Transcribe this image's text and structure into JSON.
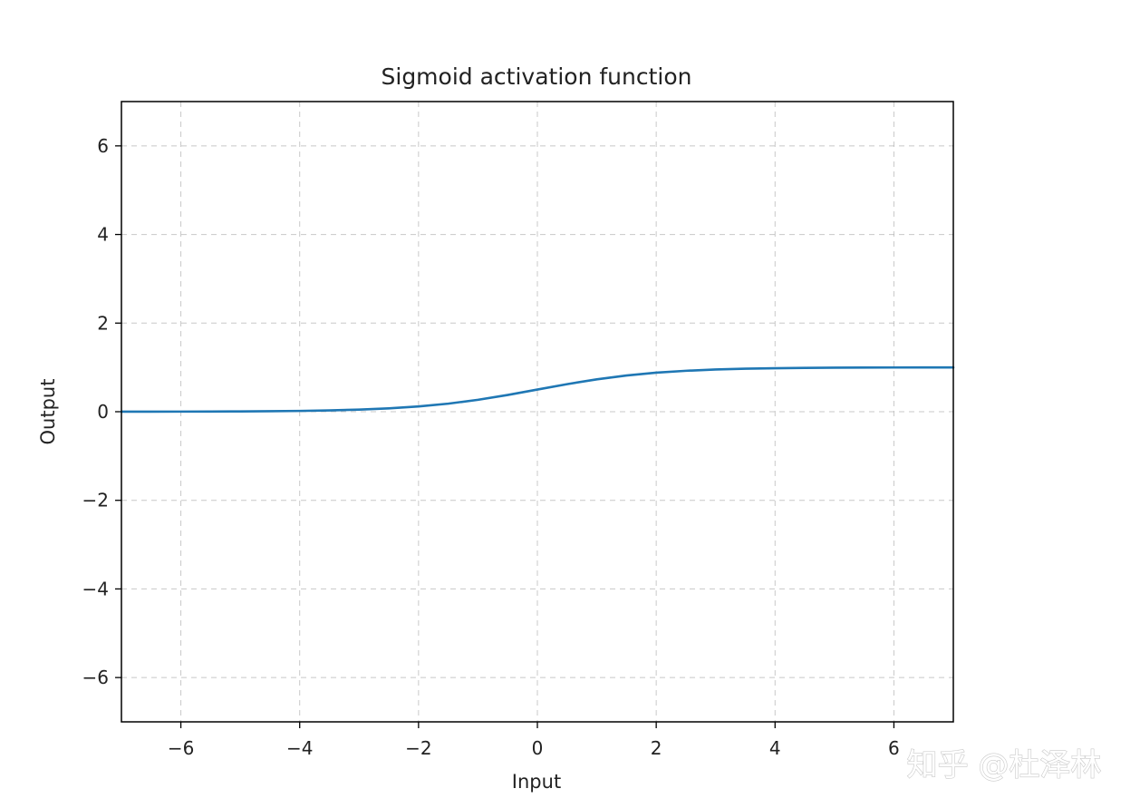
{
  "chart_data": {
    "type": "line",
    "title": "Sigmoid activation function",
    "xlabel": "Input",
    "ylabel": "Output",
    "xlim": [
      -7,
      7
    ],
    "ylim": [
      -7,
      7
    ],
    "xticks": [
      -6,
      -4,
      -2,
      0,
      2,
      4,
      6
    ],
    "yticks": [
      -6,
      -4,
      -2,
      0,
      2,
      4,
      6
    ],
    "xtick_labels": [
      "−6",
      "−4",
      "−2",
      "0",
      "2",
      "4",
      "6"
    ],
    "ytick_labels": [
      "−6",
      "−4",
      "−2",
      "0",
      "2",
      "4",
      "6"
    ],
    "grid": true,
    "legend": "none",
    "series": [
      {
        "color": "#1f77b4",
        "x": [
          -7,
          -6.5,
          -6,
          -5.5,
          -5,
          -4.5,
          -4,
          -3.5,
          -3,
          -2.5,
          -2,
          -1.5,
          -1,
          -0.5,
          0,
          0.5,
          1,
          1.5,
          2,
          2.5,
          3,
          3.5,
          4,
          4.5,
          5,
          5.5,
          6,
          6.5,
          7
        ],
        "y": [
          0.001,
          0.0015,
          0.0025,
          0.004,
          0.007,
          0.011,
          0.018,
          0.029,
          0.047,
          0.076,
          0.119,
          0.182,
          0.269,
          0.378,
          0.5,
          0.622,
          0.731,
          0.818,
          0.881,
          0.924,
          0.953,
          0.971,
          0.982,
          0.989,
          0.993,
          0.996,
          0.9975,
          0.9985,
          0.999
        ]
      }
    ]
  },
  "watermark": "知乎 @杜泽林"
}
